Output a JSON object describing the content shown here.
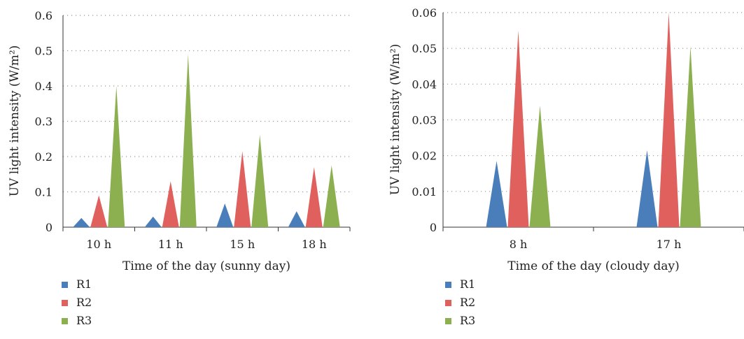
{
  "colors": {
    "R1": "#4a7ebb",
    "R2": "#e0605d",
    "R3": "#8cb050",
    "axis": "#333333",
    "grid": "#9a9a9a"
  },
  "chart_data": [
    {
      "type": "area",
      "subtype": "triangular spikes (grouped)",
      "xlabel": "Time of the day (sunny day)",
      "ylabel": "UV light intensity (W/m²)",
      "ylim": [
        0,
        0.6
      ],
      "yticks": [
        "0",
        "0.1",
        "0.2",
        "0.3",
        "0.4",
        "0.5",
        "0.6"
      ],
      "grid": "horizontal dotted",
      "legend": "bottom-left, vertical",
      "categories": [
        "10 h",
        "11 h",
        "15 h",
        "18 h"
      ],
      "series": [
        {
          "name": "R1",
          "values": [
            0.026,
            0.03,
            0.067,
            0.045
          ]
        },
        {
          "name": "R2",
          "values": [
            0.09,
            0.13,
            0.215,
            0.17
          ]
        },
        {
          "name": "R3",
          "values": [
            0.4,
            0.49,
            0.262,
            0.175
          ]
        }
      ]
    },
    {
      "type": "area",
      "subtype": "triangular spikes (grouped)",
      "xlabel": "Time of the day (cloudy day)",
      "ylabel": "UV light intensity (W/m²)",
      "ylim": [
        0,
        0.06
      ],
      "yticks": [
        "0",
        "0.01",
        "0.02",
        "0.03",
        "0.04",
        "0.05",
        "0.06"
      ],
      "grid": "horizontal dotted",
      "legend": "bottom-left, vertical",
      "categories": [
        "8 h",
        "17 h"
      ],
      "series": [
        {
          "name": "R1",
          "values": [
            0.0185,
            0.0215
          ]
        },
        {
          "name": "R2",
          "values": [
            0.055,
            0.06
          ]
        },
        {
          "name": "R3",
          "values": [
            0.034,
            0.0505
          ]
        }
      ]
    }
  ]
}
